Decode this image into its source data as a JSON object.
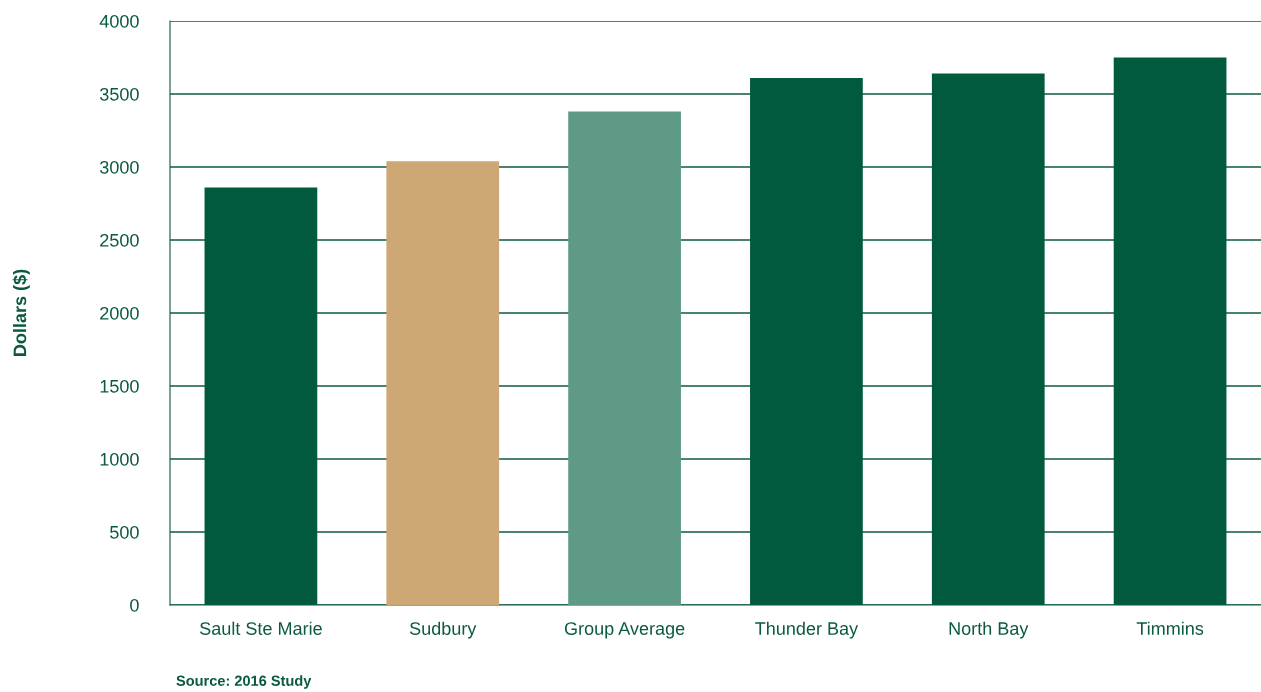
{
  "chart_data": {
    "type": "bar",
    "categories": [
      "Sault Ste Marie",
      "Sudbury",
      "Group Average",
      "Thunder Bay",
      "North Bay",
      "Timmins"
    ],
    "values": [
      2860,
      3040,
      3380,
      3610,
      3640,
      3750
    ],
    "colors": [
      "#015a3e",
      "#cea874",
      "#5f9a87",
      "#015a3e",
      "#015a3e",
      "#015a3e"
    ],
    "ylabel": "Dollars ($)",
    "ylim": [
      0,
      4000
    ],
    "yticks": [
      0,
      500,
      1000,
      1500,
      2000,
      2500,
      3000,
      3500,
      4000
    ],
    "grid": "y",
    "annotations": [
      "Source: 2016 Study"
    ]
  }
}
